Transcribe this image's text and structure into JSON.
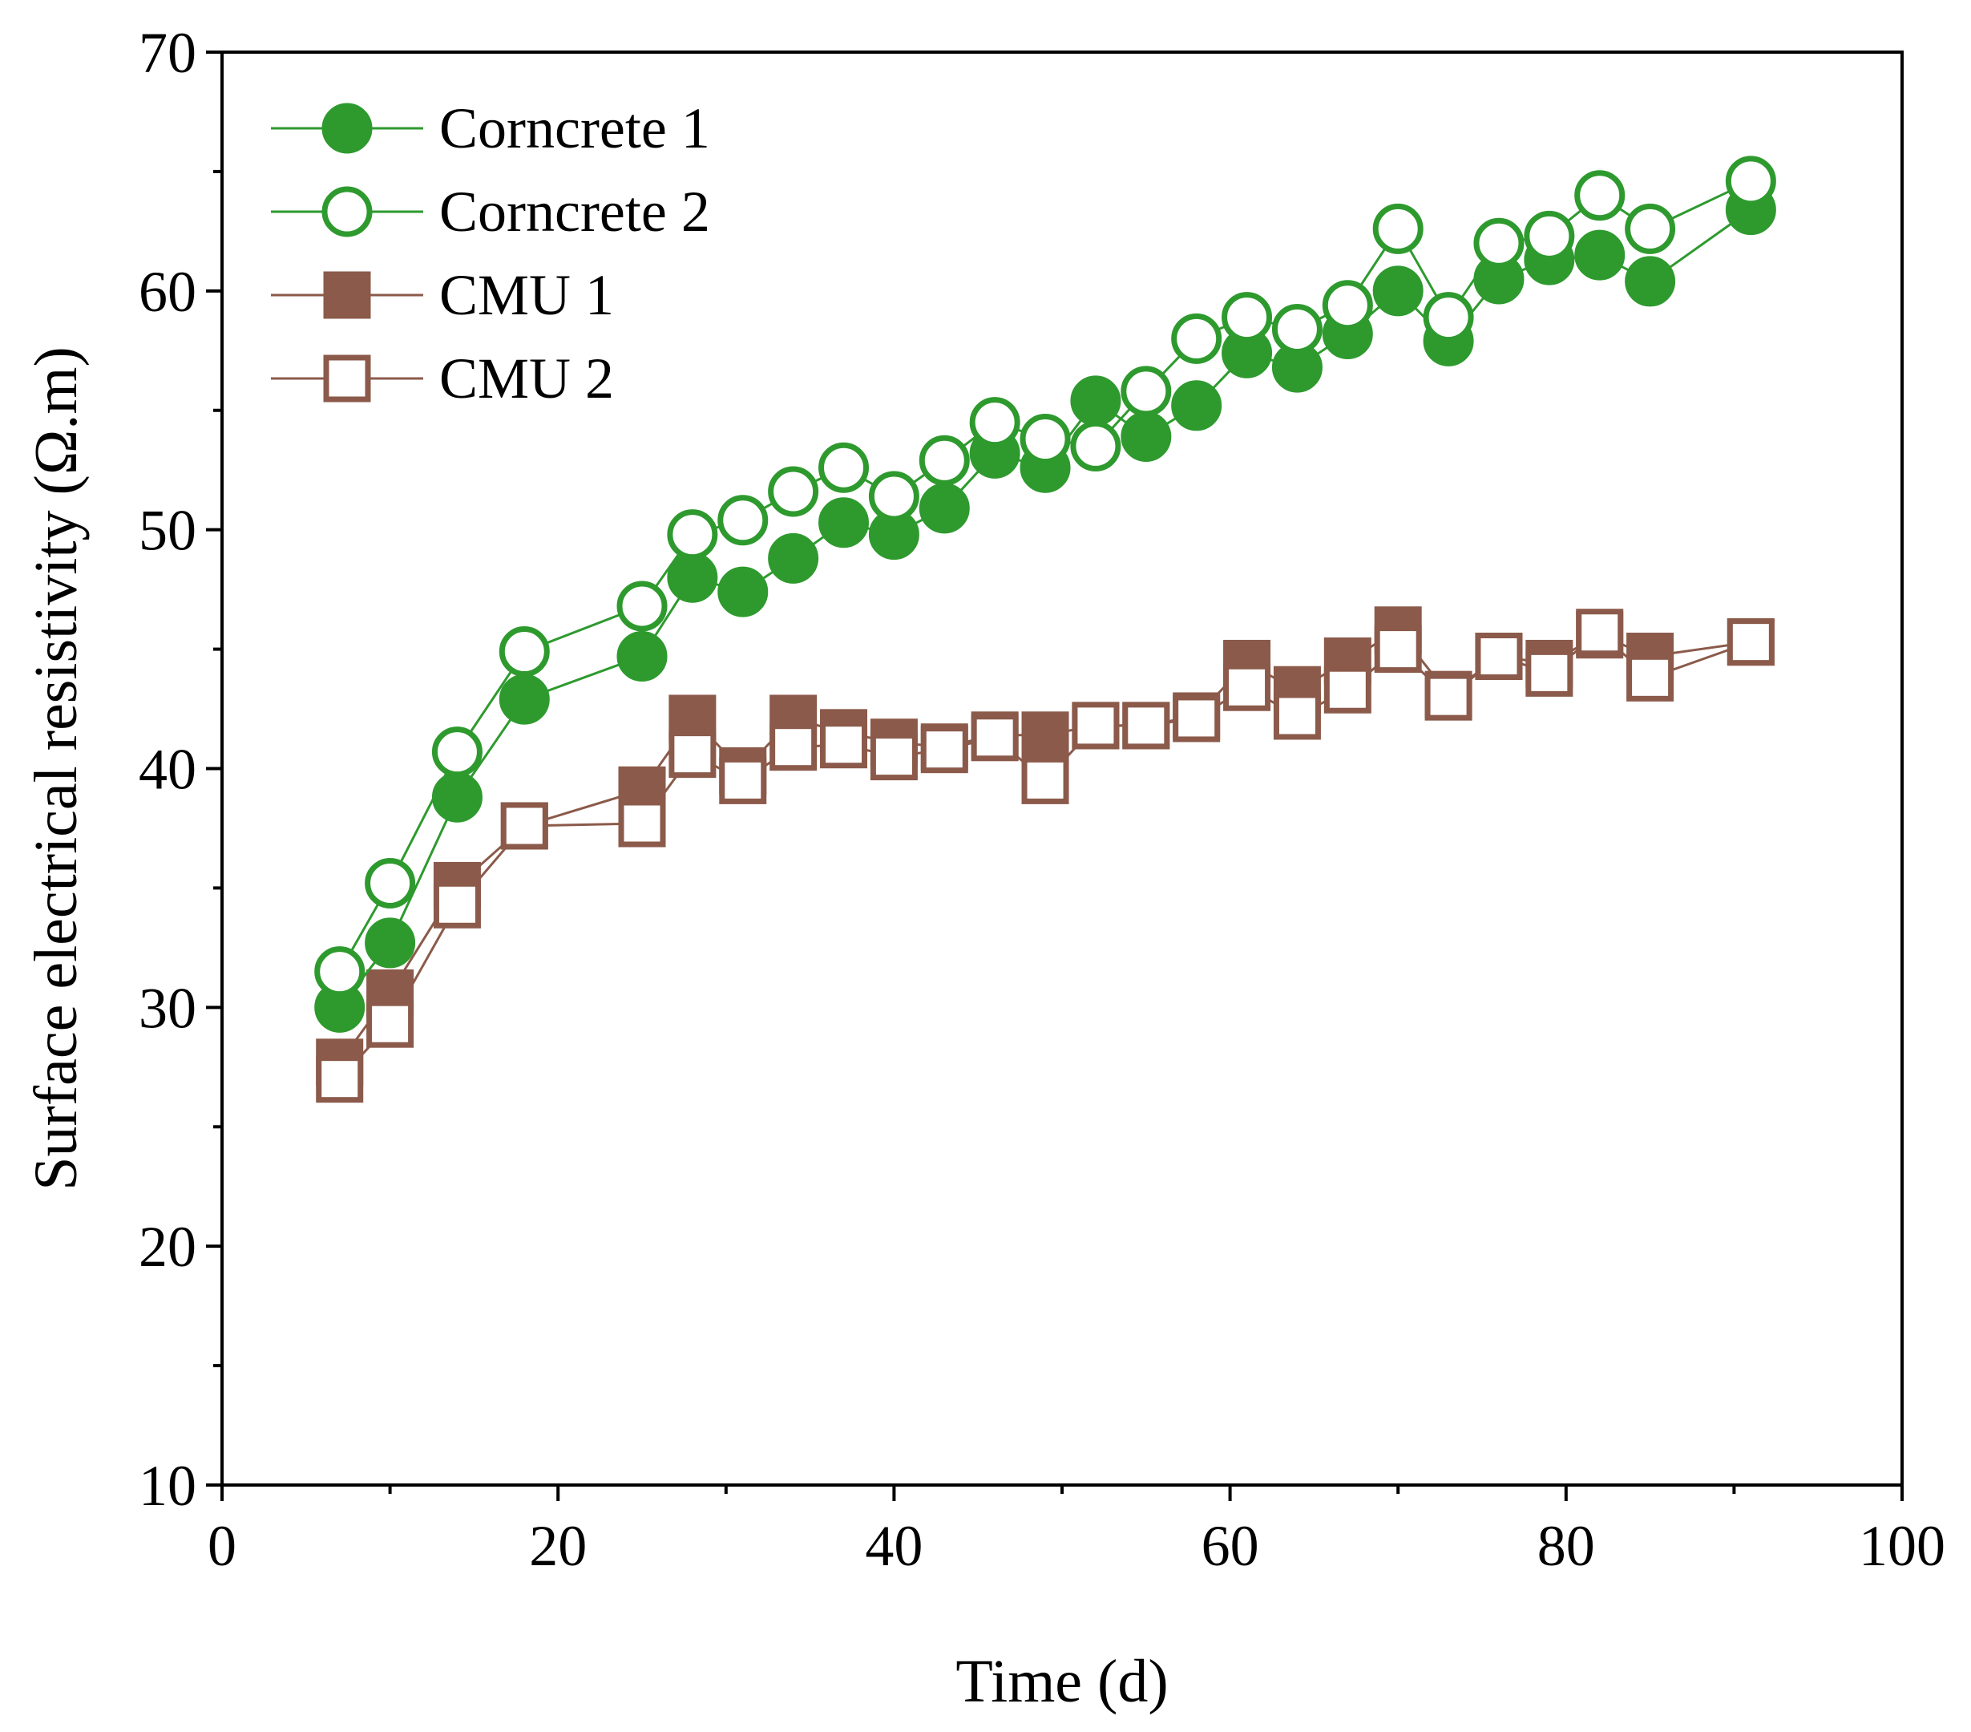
{
  "chart_data": {
    "type": "scatter",
    "xlabel": "Time (d)",
    "ylabel": "Surface electrical resistivity (Ω.m)",
    "xlim": [
      0,
      100
    ],
    "ylim": [
      10,
      70
    ],
    "xticks": [
      0,
      20,
      40,
      60,
      80,
      100
    ],
    "yticks": [
      10,
      20,
      30,
      40,
      50,
      60,
      70
    ],
    "x_minor_step": 10,
    "y_minor_step": 5,
    "grid": false,
    "legend_position": "top-left",
    "x": [
      7,
      10,
      14,
      18,
      25,
      28,
      31,
      34,
      37,
      40,
      43,
      46,
      49,
      52,
      55,
      58,
      61,
      64,
      67,
      70,
      73,
      76,
      79,
      82,
      85,
      91
    ],
    "series": [
      {
        "name": "Corncrete 1",
        "marker": "circle",
        "filled": true,
        "color": "#2e9a2e",
        "values": [
          30.0,
          32.7,
          38.8,
          42.9,
          44.7,
          48.0,
          47.4,
          48.8,
          50.3,
          49.8,
          50.9,
          53.2,
          52.6,
          55.4,
          53.9,
          55.2,
          57.4,
          56.8,
          58.2,
          60.0,
          57.9,
          60.5,
          61.3,
          61.5,
          60.4,
          63.4
        ]
      },
      {
        "name": "Corncrete 2",
        "marker": "circle",
        "filled": false,
        "color": "#2e9a2e",
        "values": [
          31.5,
          35.2,
          40.7,
          44.9,
          46.8,
          49.8,
          50.4,
          51.6,
          52.6,
          51.4,
          52.9,
          54.5,
          53.8,
          53.5,
          55.8,
          58.0,
          58.9,
          58.4,
          59.4,
          62.6,
          58.9,
          62.0,
          62.3,
          64.0,
          62.6,
          64.6
        ]
      },
      {
        "name": "CMU 1",
        "marker": "square",
        "filled": true,
        "color": "#8b5a4a",
        "values": [
          27.7,
          30.6,
          35.1,
          37.6,
          39.1,
          42.1,
          39.9,
          42.1,
          41.5,
          41.1,
          40.9,
          41.4,
          41.4,
          41.8,
          41.8,
          42.2,
          44.4,
          43.3,
          44.5,
          45.8,
          43.1,
          44.7,
          44.4,
          45.6,
          44.7,
          45.3
        ]
      },
      {
        "name": "CMU 2",
        "marker": "square",
        "filled": false,
        "color": "#8b5a4a",
        "values": [
          27.0,
          29.3,
          34.3,
          37.6,
          37.7,
          40.6,
          39.5,
          40.9,
          41.0,
          40.5,
          40.8,
          41.3,
          39.5,
          41.8,
          41.8,
          42.1,
          43.4,
          42.2,
          43.3,
          45.0,
          43.0,
          44.7,
          44.0,
          45.7,
          43.8,
          45.3
        ]
      }
    ]
  }
}
